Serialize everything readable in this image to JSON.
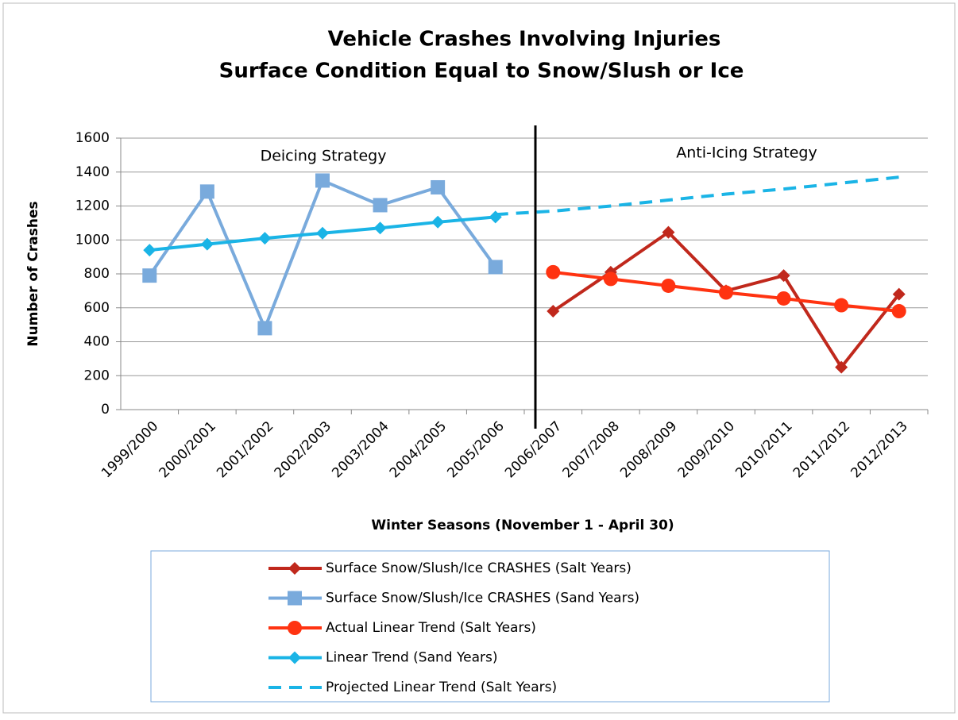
{
  "chart_data": {
    "type": "line",
    "title": [
      "Vehicle Crashes Involving Injuries",
      "Surface Condition Equal to Snow/Slush or Ice"
    ],
    "xlabel": "Winter Seasons (November 1 - April 30)",
    "ylabel": "Number of Crashes",
    "annotations": [
      "Deicing Strategy",
      "Anti-Icing Strategy"
    ],
    "categories": [
      "1999/2000",
      "2000/2001",
      "2001/2002",
      "2002/2003",
      "2003/2004",
      "2004/2005",
      "2005/2006",
      "2006/2007",
      "2007/2008",
      "2008/2009",
      "2009/2010",
      "2010/2011",
      "2011/2012",
      "2012/2013"
    ],
    "ylim": [
      0,
      1600
    ],
    "yticks": [
      0,
      200,
      400,
      600,
      800,
      1000,
      1200,
      1400,
      1600
    ],
    "grid": true,
    "legend": "bottom",
    "series": [
      {
        "name": "Surface Snow/Slush/Ice CRASHES (Salt Years)",
        "color": "#c0281c",
        "marker": "diamond",
        "dashed": false,
        "values": [
          null,
          null,
          null,
          null,
          null,
          null,
          null,
          580,
          810,
          1045,
          700,
          790,
          250,
          680
        ]
      },
      {
        "name": "Surface Snow/Slush/Ice CRASHES (Sand Years)",
        "color": "#79aadc",
        "marker": "square",
        "dashed": false,
        "values": [
          790,
          1285,
          480,
          1350,
          1205,
          1310,
          840,
          null,
          null,
          null,
          null,
          null,
          null,
          null
        ]
      },
      {
        "name": "Actual Linear Trend (Salt Years)",
        "color": "#ff3311",
        "marker": "circle",
        "dashed": false,
        "values": [
          null,
          null,
          null,
          null,
          null,
          null,
          null,
          810,
          770,
          730,
          690,
          655,
          615,
          580
        ]
      },
      {
        "name": "Linear Trend (Sand Years)",
        "color": "#1ab4e6",
        "marker": "diamond",
        "dashed": false,
        "values": [
          940,
          975,
          1010,
          1040,
          1070,
          1105,
          1135,
          null,
          null,
          null,
          null,
          null,
          null,
          null
        ]
      },
      {
        "name": "Projected Linear Trend (Salt Years)",
        "color": "#1ab4e6",
        "marker": null,
        "dashed": true,
        "values": [
          null,
          null,
          null,
          null,
          null,
          null,
          1150,
          1170,
          1200,
          1235,
          1270,
          1300,
          1335,
          1370
        ]
      }
    ]
  }
}
